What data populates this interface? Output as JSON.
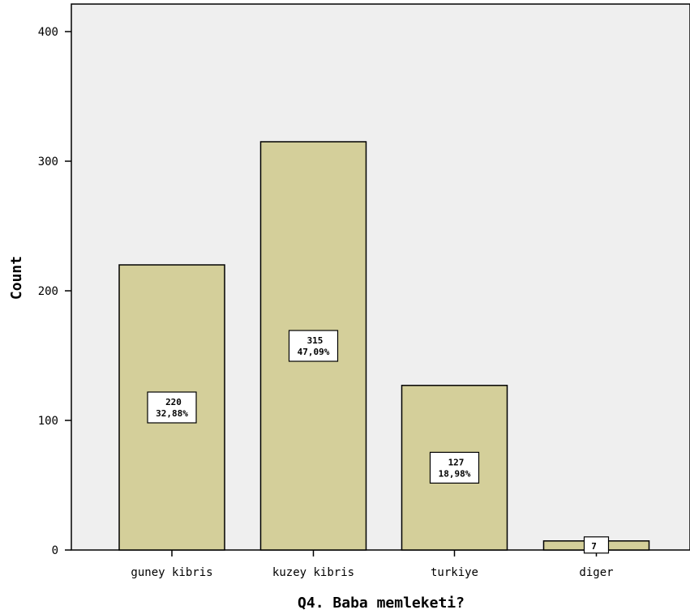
{
  "chart_data": {
    "type": "bar",
    "categories": [
      "guney kibris",
      "kuzey kibris",
      "turkiye",
      "diger"
    ],
    "values": [
      220,
      315,
      127,
      7
    ],
    "data_labels": [
      {
        "count": "220",
        "percent": "32,88%"
      },
      {
        "count": "315",
        "percent": "47,09%"
      },
      {
        "count": "127",
        "percent": "18,98%"
      },
      {
        "count": "7",
        "percent": ""
      }
    ],
    "xlabel": "Q4. Baba memleketi?",
    "ylabel": "Count",
    "ylim": [
      0,
      400
    ],
    "yticks": [
      0,
      100,
      200,
      300,
      400
    ],
    "grid": false,
    "colors": {
      "plot_background": "#efefef",
      "bar_fill": "#d4cf9a",
      "bar_stroke": "#000000"
    }
  }
}
